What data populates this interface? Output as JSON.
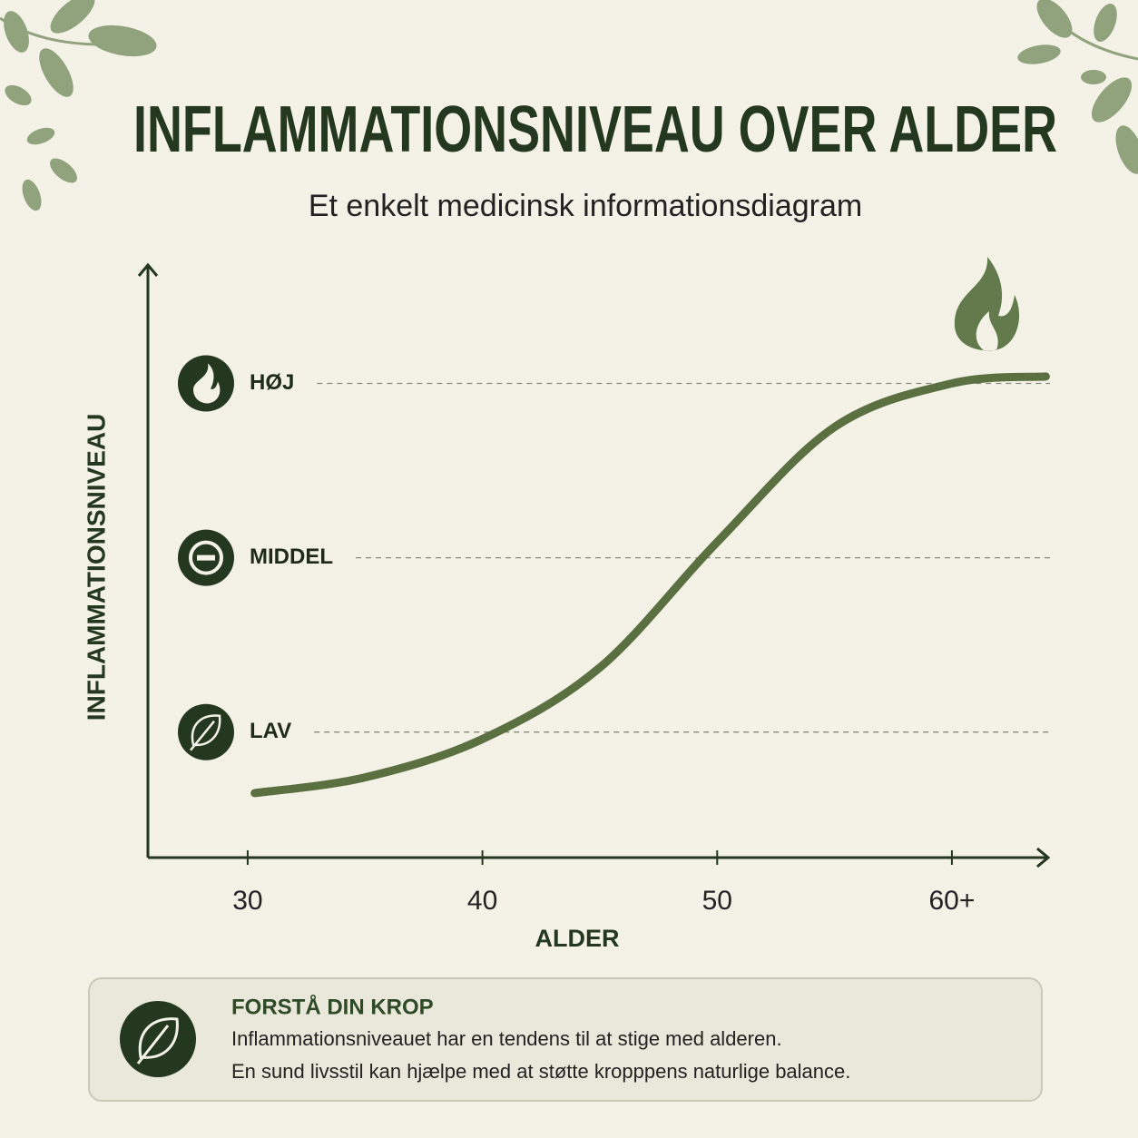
{
  "chart_data": {
    "type": "line",
    "title": "INFLAMMATIONSNIVEAU OVER ALDER",
    "subtitle": "Et enkelt medicinsk informationsdiagram",
    "x_label": "ALDER",
    "y_label": "INFLAMMATIONSNIVEAU",
    "x": [
      30.3,
      35,
      40,
      45,
      50,
      55,
      60,
      64
    ],
    "series": [
      {
        "name": "Inflammationsniveau",
        "color": "#5b7041",
        "values": [
          0.65,
          0.74,
          0.96,
          1.37,
          2.09,
          2.75,
          3.0,
          3.04
        ]
      }
    ],
    "xlim": [
      25.75,
      64.1
    ],
    "xticks": [
      30,
      40,
      50,
      {
        "value": 60,
        "label": "60+"
      }
    ],
    "ylim": [
      0.28,
      3.69
    ],
    "yticks": [
      {
        "value": 1,
        "label": "LAV"
      },
      {
        "value": 2,
        "label": "MIDDEL"
      },
      {
        "value": 3,
        "label": "HØJ"
      }
    ],
    "grid": true,
    "annotations": {
      "heading": "FORSTÅ DIN KROP",
      "lines": [
        "Inflammationsniveauet har en tendens til at stige med alderen.",
        "En sund livsstil kan hjælpe med at støtte kropppens naturlige balance."
      ]
    }
  }
}
